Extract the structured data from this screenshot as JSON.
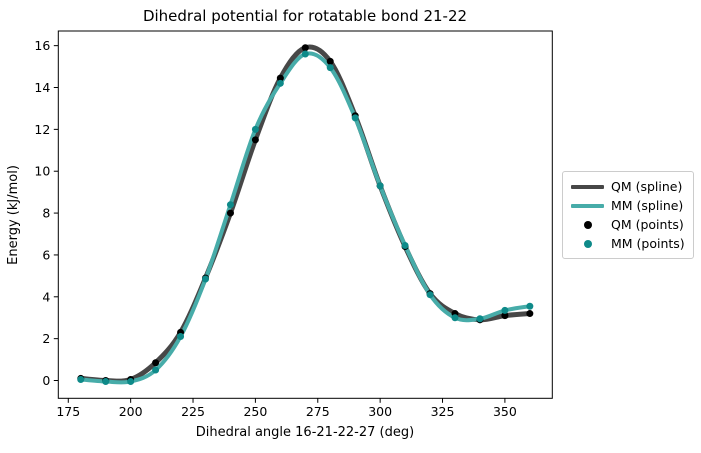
{
  "title": "Dihedral potential for rotatable bond 21-22",
  "chart_data": {
    "type": "line",
    "title": "Dihedral potential for rotatable bond 21-22",
    "xlabel": "Dihedral angle 16-21-22-27 (deg)",
    "ylabel": "Energy (kJ/mol)",
    "xlim": [
      171,
      369
    ],
    "ylim": [
      -0.85,
      16.7
    ],
    "x_ticks": [
      175,
      200,
      225,
      250,
      275,
      300,
      325,
      350
    ],
    "y_ticks": [
      0,
      2,
      4,
      6,
      8,
      10,
      12,
      14,
      16
    ],
    "grid": false,
    "legend_position": "right-outside",
    "x": [
      180,
      190,
      200,
      210,
      220,
      230,
      240,
      250,
      260,
      270,
      280,
      290,
      300,
      310,
      320,
      330,
      340,
      350,
      360
    ],
    "series": [
      {
        "name": "QM (spline)",
        "style": "spline",
        "color": "#474747",
        "linewidth": 5,
        "values": [
          0.1,
          0.0,
          0.05,
          0.85,
          2.3,
          4.9,
          8.0,
          11.5,
          14.45,
          15.9,
          15.25,
          12.65,
          9.3,
          6.4,
          4.15,
          3.2,
          2.9,
          3.1,
          3.2
        ]
      },
      {
        "name": "MM (spline)",
        "style": "spline",
        "color": "#47aca9",
        "linewidth": 4,
        "values": [
          0.05,
          -0.05,
          -0.05,
          0.5,
          2.1,
          4.85,
          8.4,
          12.0,
          14.2,
          15.6,
          14.95,
          12.55,
          9.3,
          6.45,
          4.1,
          3.0,
          2.95,
          3.35,
          3.55
        ]
      },
      {
        "name": "QM (points)",
        "style": "points",
        "color": "#000000",
        "markersize": 7,
        "values": [
          0.1,
          0.0,
          0.05,
          0.85,
          2.3,
          4.9,
          8.0,
          11.5,
          14.45,
          15.9,
          15.25,
          12.65,
          9.3,
          6.4,
          4.15,
          3.2,
          2.9,
          3.1,
          3.2
        ]
      },
      {
        "name": "MM (points)",
        "style": "points",
        "color": "#0e8a89",
        "markersize": 7,
        "values": [
          0.05,
          -0.05,
          -0.05,
          0.5,
          2.1,
          4.85,
          8.4,
          12.0,
          14.2,
          15.6,
          14.95,
          12.55,
          9.3,
          6.45,
          4.1,
          3.0,
          2.95,
          3.35,
          3.55
        ]
      }
    ]
  },
  "legend": {
    "items": [
      {
        "label": "QM (spline)"
      },
      {
        "label": "MM (spline)"
      },
      {
        "label": "QM (points)"
      },
      {
        "label": "MM (points)"
      }
    ]
  }
}
